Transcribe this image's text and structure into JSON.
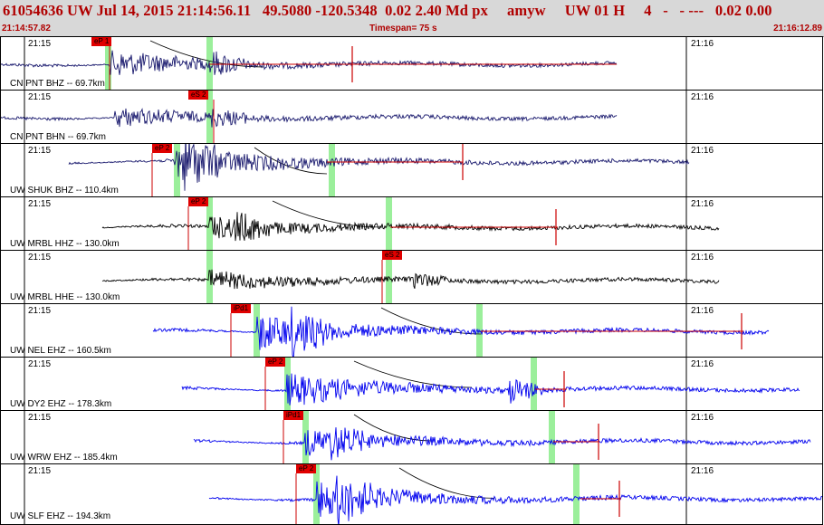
{
  "header": {
    "title": "61054636 UW Jul 14, 2015 21:14:56.11   49.5080 -120.5348  0.02 2.40 Md px     amyw     UW 01 H     4   -   - ---   0.02 0.00",
    "start_time": "21:14:57.82",
    "timespan": "Timespan=  75 s",
    "end_time": "21:16:12.89"
  },
  "time_ticks": {
    "left": "21:15",
    "right": "21:16"
  },
  "colors": {
    "header_bg": "#d8d8d8",
    "header_text": "#b00000",
    "phase_flag": "#e00000",
    "pick_window": "#9bef9b",
    "theoretical": "#000000"
  },
  "traces": [
    {
      "channel": "CN PNT BHZ -- 69.7km",
      "phase": "eP 1",
      "color": "#1a1a6e",
      "marker": "#cc0000"
    },
    {
      "channel": "CN PNT BHN -- 69.7km",
      "phase": "eS 2",
      "color": "#1a1a6e",
      "marker": "#cc0000"
    },
    {
      "channel": "UW SHUK BHZ -- 110.4km",
      "phase": "eP 2",
      "color": "#1a1a6e",
      "marker": "#cc0000"
    },
    {
      "channel": "UW MRBL HHZ -- 130.0km",
      "phase": "eP 2",
      "color": "#000000",
      "marker": "#cc0000"
    },
    {
      "channel": "UW MRBL HHE -- 130.0km",
      "phase": "eS 2",
      "color": "#000000",
      "marker": "#cc0000"
    },
    {
      "channel": "UW NEL EHZ -- 160.5km",
      "phase": "iPd1",
      "color": "#0000ee",
      "marker": "#cc0000"
    },
    {
      "channel": "UW DY2 EHZ -- 178.3km",
      "phase": "eP 2",
      "color": "#0000ee",
      "marker": "#cc0000"
    },
    {
      "channel": "UW WRW EHZ -- 185.4km",
      "phase": "iPd1",
      "color": "#0000ee",
      "marker": "#cc0000"
    },
    {
      "channel": "UW SLF EHZ -- 194.3km",
      "phase": "eP 2",
      "color": "#0000ee",
      "marker": "#cc0000"
    }
  ]
}
